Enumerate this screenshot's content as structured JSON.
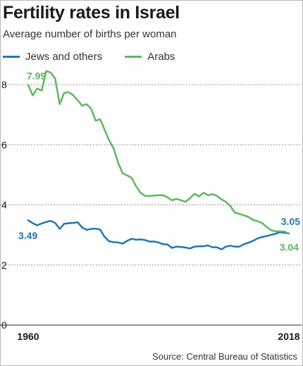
{
  "title": "Fertility rates in Israel",
  "subtitle": "Average number of births per woman",
  "source": "Source: Central Bureau of Statistics",
  "colors": {
    "jews": "#1f77b4",
    "arabs": "#5cb85c",
    "grid": "#555555",
    "text": "#1a1a1a"
  },
  "chart_data": {
    "type": "line",
    "title": "Fertility rates in Israel",
    "subtitle": "Average number of births per woman",
    "xlabel": "",
    "ylabel": "",
    "xlim": [
      1960,
      2018
    ],
    "ylim": [
      0,
      8
    ],
    "yticks": [
      0,
      2,
      4,
      6,
      8
    ],
    "xtick_labels": [
      1960,
      2018
    ],
    "grid": true,
    "legend": "top-left",
    "series": [
      {
        "name": "Jews and others",
        "color": "#1f77b4",
        "end_labels": [
          "3.49",
          "3.05"
        ],
        "x": [
          1960,
          1961,
          1962,
          1963,
          1964,
          1965,
          1966,
          1967,
          1968,
          1969,
          1970,
          1971,
          1972,
          1973,
          1974,
          1975,
          1976,
          1977,
          1978,
          1979,
          1980,
          1981,
          1982,
          1983,
          1984,
          1985,
          1986,
          1987,
          1988,
          1989,
          1990,
          1991,
          1992,
          1993,
          1994,
          1995,
          1996,
          1997,
          1998,
          1999,
          2000,
          2001,
          2002,
          2003,
          2004,
          2005,
          2006,
          2007,
          2008,
          2009,
          2010,
          2011,
          2012,
          2013,
          2014,
          2015,
          2016,
          2017,
          2018
        ],
        "values": [
          3.49,
          3.39,
          3.32,
          3.38,
          3.43,
          3.47,
          3.4,
          3.2,
          3.37,
          3.39,
          3.4,
          3.42,
          3.25,
          3.17,
          3.2,
          3.21,
          3.18,
          2.94,
          2.79,
          2.76,
          2.75,
          2.71,
          2.8,
          2.87,
          2.84,
          2.85,
          2.83,
          2.78,
          2.78,
          2.75,
          2.69,
          2.68,
          2.57,
          2.61,
          2.6,
          2.58,
          2.55,
          2.61,
          2.62,
          2.62,
          2.65,
          2.59,
          2.59,
          2.52,
          2.61,
          2.64,
          2.61,
          2.61,
          2.69,
          2.74,
          2.8,
          2.88,
          2.93,
          2.96,
          3.0,
          3.04,
          3.09,
          3.07,
          3.05
        ]
      },
      {
        "name": "Arabs",
        "color": "#5cb85c",
        "end_labels": [
          "7.99",
          "3.04"
        ],
        "x": [
          1960,
          1961,
          1962,
          1963,
          1964,
          1965,
          1966,
          1967,
          1968,
          1969,
          1970,
          1971,
          1972,
          1973,
          1974,
          1975,
          1976,
          1977,
          1978,
          1979,
          1980,
          1981,
          1982,
          1983,
          1984,
          1985,
          1986,
          1987,
          1988,
          1989,
          1990,
          1991,
          1992,
          1993,
          1994,
          1995,
          1996,
          1997,
          1998,
          1999,
          2000,
          2001,
          2002,
          2003,
          2004,
          2005,
          2006,
          2007,
          2008,
          2009,
          2010,
          2011,
          2012,
          2013,
          2014,
          2015,
          2016,
          2017,
          2018
        ],
        "values": [
          7.99,
          7.64,
          7.87,
          7.8,
          8.45,
          8.4,
          8.2,
          7.35,
          7.72,
          7.75,
          7.65,
          7.48,
          7.3,
          7.35,
          7.2,
          6.8,
          6.85,
          6.5,
          6.15,
          5.88,
          5.4,
          5.05,
          4.98,
          4.9,
          4.62,
          4.4,
          4.3,
          4.29,
          4.31,
          4.32,
          4.32,
          4.25,
          4.15,
          4.2,
          4.15,
          4.1,
          4.22,
          4.37,
          4.28,
          4.4,
          4.32,
          4.36,
          4.3,
          4.18,
          4.1,
          3.95,
          3.74,
          3.7,
          3.65,
          3.6,
          3.5,
          3.46,
          3.4,
          3.27,
          3.16,
          3.12,
          3.12,
          3.11,
          3.04
        ]
      }
    ]
  }
}
